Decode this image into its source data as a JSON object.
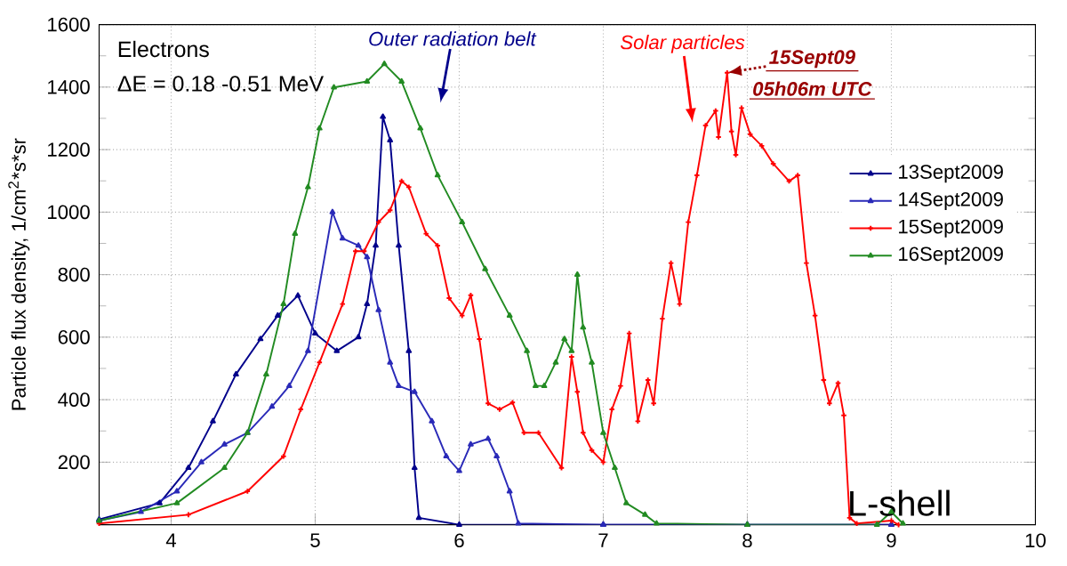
{
  "chart_data": {
    "type": "line",
    "ylabel": "Particle flux density, 1/cm$^{2}$*s*sr",
    "xlabel": "L-shell",
    "xlim": [
      3.5,
      10
    ],
    "ylim": [
      0,
      1600
    ],
    "xticks": [
      4,
      5,
      6,
      7,
      8,
      9,
      10
    ],
    "yticks": [
      200,
      400,
      600,
      800,
      1000,
      1200,
      1400,
      1600
    ],
    "grid": true,
    "legend": "right",
    "marker": "triangle",
    "annotations": [
      "Electrons",
      "ΔE = 0.18 -0.51 MeV",
      "Outer radiation belt",
      "Solar particles",
      {
        "text": "15Sept09",
        "x": 7.86,
        "y": 1446
      },
      {
        "text": "05h06m UTC",
        "x": 7.86,
        "y": 1446
      }
    ],
    "series": [
      {
        "name": "13Sept2009",
        "color": "#00008b",
        "x": [
          3.5,
          3.92,
          4.12,
          4.29,
          4.45,
          4.62,
          4.74,
          4.88,
          5.0,
          5.15,
          5.3,
          5.36,
          5.42,
          5.47,
          5.52,
          5.58,
          5.65,
          5.69,
          5.72,
          6.0,
          7.0,
          8.0,
          9.0
        ],
        "values": [
          17,
          69,
          182,
          331,
          481,
          594,
          669,
          733,
          612,
          556,
          600,
          706,
          893,
          1305,
          1230,
          893,
          556,
          182,
          22,
          0,
          0,
          0,
          0
        ]
      },
      {
        "name": "14Sept2009",
        "color": "#2a2ab8",
        "x": [
          3.5,
          3.79,
          4.04,
          4.21,
          4.37,
          4.53,
          4.7,
          4.82,
          4.95,
          5.12,
          5.19,
          5.3,
          5.36,
          5.44,
          5.52,
          5.58,
          5.69,
          5.81,
          5.91,
          6.0,
          6.08,
          6.2,
          6.26,
          6.35,
          6.41,
          7.0,
          8.0,
          9.0
        ],
        "values": [
          13,
          41,
          107,
          200,
          257,
          294,
          378,
          444,
          556,
          1000,
          916,
          893,
          856,
          687,
          519,
          444,
          425,
          331,
          219,
          172,
          257,
          275,
          219,
          107,
          4,
          0,
          0,
          0
        ]
      },
      {
        "name": "15Sept2009",
        "color": "#ff0000",
        "marker": "cross",
        "x": [
          3.5,
          4.12,
          4.53,
          4.78,
          4.9,
          5.03,
          5.19,
          5.28,
          5.34,
          5.44,
          5.52,
          5.6,
          5.65,
          5.77,
          5.85,
          5.93,
          6.02,
          6.08,
          6.14,
          6.2,
          6.28,
          6.37,
          6.45,
          6.55,
          6.71,
          6.78,
          6.82,
          6.86,
          6.92,
          7.0,
          7.06,
          7.12,
          7.18,
          7.24,
          7.31,
          7.35,
          7.41,
          7.47,
          7.53,
          7.59,
          7.65,
          7.71,
          7.78,
          7.8,
          7.86,
          7.89,
          7.92,
          7.96,
          8.02,
          8.1,
          8.18,
          8.29,
          8.35,
          8.41,
          8.47,
          8.53,
          8.57,
          8.63,
          8.67,
          8.71,
          8.76,
          9.0,
          9.05
        ],
        "values": [
          4,
          32,
          107,
          219,
          369,
          519,
          706,
          875,
          875,
          968,
          1006,
          1099,
          1080,
          931,
          893,
          725,
          669,
          734,
          594,
          388,
          369,
          391,
          294,
          294,
          182,
          537,
          425,
          294,
          238,
          200,
          369,
          444,
          612,
          331,
          463,
          388,
          659,
          837,
          706,
          968,
          1118,
          1277,
          1324,
          1240,
          1446,
          1258,
          1183,
          1333,
          1249,
          1212,
          1155,
          1099,
          1118,
          837,
          669,
          463,
          388,
          453,
          350,
          22,
          4,
          13,
          0
        ]
      },
      {
        "name": "16Sept2009",
        "color": "#228b22",
        "x": [
          3.5,
          4.04,
          4.37,
          4.53,
          4.66,
          4.78,
          4.86,
          4.95,
          5.03,
          5.13,
          5.36,
          5.48,
          5.6,
          5.73,
          5.85,
          6.02,
          6.18,
          6.35,
          6.47,
          6.53,
          6.59,
          6.67,
          6.73,
          6.78,
          6.82,
          6.86,
          6.92,
          7.0,
          7.08,
          7.16,
          7.29,
          7.37,
          8.0,
          8.9,
          9.0,
          9.08
        ],
        "values": [
          13,
          69,
          182,
          294,
          481,
          706,
          931,
          1080,
          1268,
          1399,
          1418,
          1474,
          1418,
          1268,
          1118,
          968,
          818,
          669,
          556,
          444,
          444,
          519,
          594,
          556,
          800,
          631,
          519,
          294,
          182,
          69,
          32,
          4,
          0,
          0,
          41,
          4
        ]
      }
    ]
  }
}
